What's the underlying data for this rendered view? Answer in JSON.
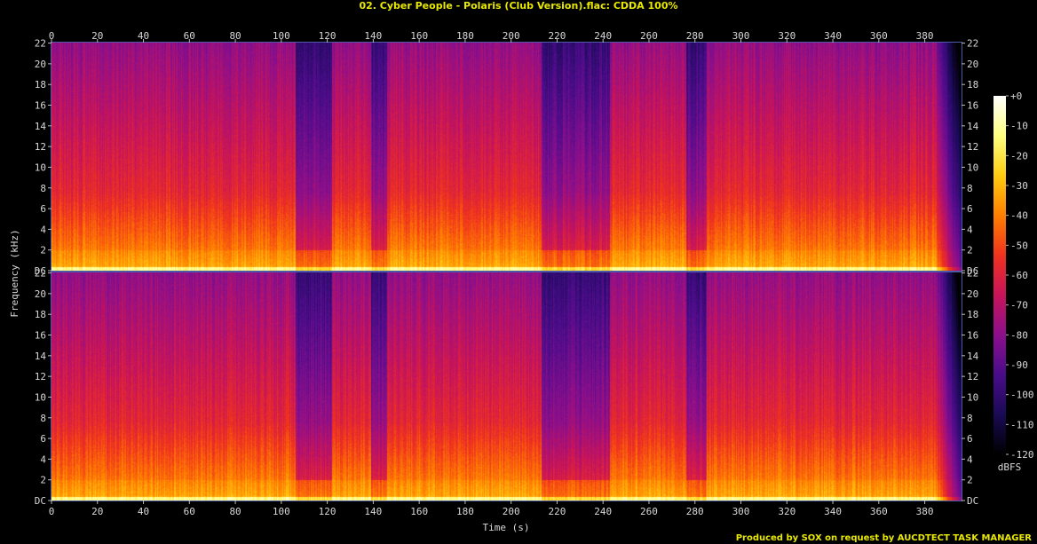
{
  "title": "02. Cyber People - Polaris (Club Version).flac: CDDA 100%",
  "credit": "Produced by SOX on request by AUCDTECT TASK MANAGER",
  "chart_data": {
    "type": "heatmap",
    "title": "02. Cyber People - Polaris (Club Version).flac: CDDA 100%",
    "xlabel": "Time (s)",
    "ylabel": "Frequency (kHz)",
    "colorbar_label": "dBFS",
    "xlim": [
      0,
      396
    ],
    "ylim": [
      0,
      22.05
    ],
    "x_ticks": [
      "0",
      "20",
      "40",
      "60",
      "80",
      "100",
      "120",
      "140",
      "160",
      "180",
      "200",
      "220",
      "240",
      "260",
      "280",
      "300",
      "320",
      "340",
      "360",
      "380"
    ],
    "y_ticks": [
      "DC",
      "2",
      "4",
      "6",
      "8",
      "10",
      "12",
      "14",
      "16",
      "18",
      "20",
      "22"
    ],
    "colorbar_range": [
      -120,
      0
    ],
    "colorbar_ticks": [
      "+0",
      "-10",
      "-20",
      "-30",
      "-40",
      "-50",
      "-60",
      "-70",
      "-80",
      "-90",
      "-100",
      "-110",
      "-120"
    ],
    "channels": 2,
    "colormap": [
      "#000000",
      "#1a0a55",
      "#4a0c8a",
      "#8c0f8c",
      "#c8145a",
      "#f0321e",
      "#ff7f00",
      "#ffcc10",
      "#ffff80",
      "#ffffff"
    ],
    "quiet_sections_s": [
      [
        106,
        122
      ],
      [
        139,
        146
      ],
      [
        213,
        243
      ],
      [
        276,
        285
      ]
    ],
    "fade_out_s": [
      384,
      396
    ]
  }
}
